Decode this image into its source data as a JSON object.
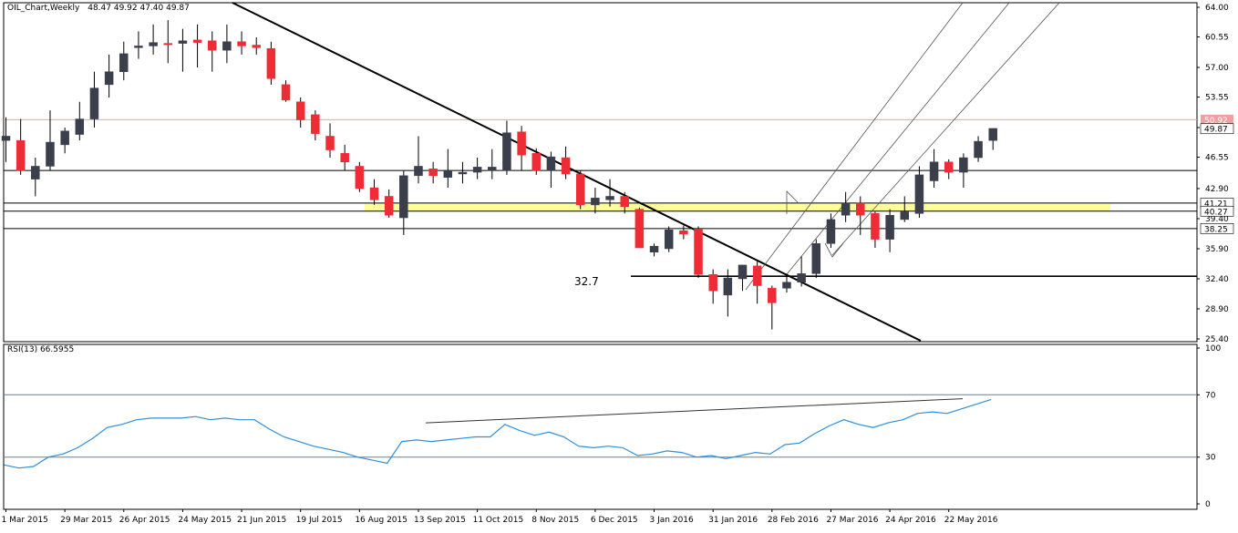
{
  "header": {
    "symbol": "OIL_Chart,Weekly",
    "ohlc": "48.47 49.92 47.40 49.87",
    "rsi_label": "RSI(13) 66.5955"
  },
  "colors": {
    "bull": "#3a3f4b",
    "bear": "#ee2c36",
    "background": "#ffffff",
    "resistance_line": "#f0a0a0",
    "support_zone": "#ffff99",
    "rsi_line": "#2f8fd8",
    "channel": "#555555"
  },
  "annotations": {
    "support_label": "32.7"
  },
  "chart_data": [
    {
      "type": "candlestick",
      "title": "OIL_Chart,Weekly",
      "ylim": [
        25.4,
        64.0
      ],
      "y_ticks": [
        "64.00",
        "60.55",
        "57.00",
        "53.55",
        "50.00",
        "46.55",
        "42.90",
        "39.40",
        "35.90",
        "32.40",
        "28.90",
        "25.40"
      ],
      "price_labels": [
        {
          "text": "50.92",
          "value": 50.92,
          "kind": "resistance"
        },
        {
          "text": "49.87",
          "value": 49.87,
          "kind": "last"
        },
        {
          "text": "41.21",
          "value": 41.21,
          "kind": "level"
        },
        {
          "text": "40.27",
          "value": 40.27,
          "kind": "level"
        },
        {
          "text": "38.25",
          "value": 38.25,
          "kind": "level"
        }
      ],
      "x_labels": [
        "1 Mar 2015",
        "29 Mar 2015",
        "26 Apr 2015",
        "24 May 2015",
        "21 Jun 2015",
        "19 Jul 2015",
        "16 Aug 2015",
        "13 Sep 2015",
        "11 Oct 2015",
        "8 Nov 2015",
        "6 Dec 2015",
        "3 Jan 2016",
        "31 Jan 2016",
        "28 Feb 2016",
        "27 Mar 2016",
        "24 Apr 2016",
        "22 May 2016"
      ],
      "horizontal_levels": [
        50.92,
        45.0,
        41.21,
        40.27,
        38.25,
        32.7
      ],
      "support_zone": [
        40.27,
        41.21
      ],
      "candles": [
        {
          "o": 48.5,
          "h": 51.2,
          "l": 46.0,
          "c": 49.0
        },
        {
          "o": 48.5,
          "h": 51.0,
          "l": 44.5,
          "c": 45.0
        },
        {
          "o": 44.0,
          "h": 46.5,
          "l": 42.0,
          "c": 45.5
        },
        {
          "o": 45.5,
          "h": 52.0,
          "l": 45.0,
          "c": 48.3
        },
        {
          "o": 48.0,
          "h": 50.0,
          "l": 47.0,
          "c": 49.6
        },
        {
          "o": 49.2,
          "h": 53.0,
          "l": 48.5,
          "c": 51.0
        },
        {
          "o": 51.0,
          "h": 56.5,
          "l": 50.0,
          "c": 54.6
        },
        {
          "o": 55.0,
          "h": 58.5,
          "l": 53.5,
          "c": 56.5
        },
        {
          "o": 56.5,
          "h": 60.0,
          "l": 55.5,
          "c": 58.6
        },
        {
          "o": 59.3,
          "h": 61.2,
          "l": 58.0,
          "c": 59.5
        },
        {
          "o": 59.5,
          "h": 62.0,
          "l": 58.5,
          "c": 59.9
        },
        {
          "o": 59.8,
          "h": 62.5,
          "l": 57.5,
          "c": 59.7
        },
        {
          "o": 59.8,
          "h": 61.5,
          "l": 56.5,
          "c": 60.1
        },
        {
          "o": 60.2,
          "h": 62.0,
          "l": 57.0,
          "c": 59.9
        },
        {
          "o": 60.1,
          "h": 61.2,
          "l": 56.5,
          "c": 59.0
        },
        {
          "o": 59.0,
          "h": 62.0,
          "l": 57.5,
          "c": 60.0
        },
        {
          "o": 60.0,
          "h": 61.2,
          "l": 58.5,
          "c": 59.5
        },
        {
          "o": 59.6,
          "h": 60.5,
          "l": 58.5,
          "c": 59.3
        },
        {
          "o": 59.2,
          "h": 60.0,
          "l": 55.0,
          "c": 55.7
        },
        {
          "o": 55.0,
          "h": 55.5,
          "l": 53.0,
          "c": 53.2
        },
        {
          "o": 53.0,
          "h": 53.5,
          "l": 50.0,
          "c": 50.9
        },
        {
          "o": 51.5,
          "h": 52.0,
          "l": 48.5,
          "c": 49.3
        },
        {
          "o": 49.0,
          "h": 50.5,
          "l": 46.5,
          "c": 47.4
        },
        {
          "o": 47.0,
          "h": 48.0,
          "l": 45.0,
          "c": 46.0
        },
        {
          "o": 45.5,
          "h": 46.0,
          "l": 42.5,
          "c": 42.9
        },
        {
          "o": 43.0,
          "h": 44.0,
          "l": 41.0,
          "c": 41.6
        },
        {
          "o": 42.0,
          "h": 42.8,
          "l": 39.5,
          "c": 39.8
        },
        {
          "o": 39.5,
          "h": 45.0,
          "l": 37.5,
          "c": 44.4
        },
        {
          "o": 44.4,
          "h": 49.0,
          "l": 43.5,
          "c": 45.5
        },
        {
          "o": 45.2,
          "h": 46.0,
          "l": 43.5,
          "c": 44.4
        },
        {
          "o": 44.2,
          "h": 47.5,
          "l": 43.0,
          "c": 45.0
        },
        {
          "o": 44.6,
          "h": 46.0,
          "l": 43.5,
          "c": 44.8
        },
        {
          "o": 44.8,
          "h": 46.5,
          "l": 44.0,
          "c": 45.4
        },
        {
          "o": 45.0,
          "h": 47.5,
          "l": 44.0,
          "c": 45.4
        },
        {
          "o": 45.0,
          "h": 50.8,
          "l": 44.5,
          "c": 49.4
        },
        {
          "o": 49.5,
          "h": 50.2,
          "l": 45.0,
          "c": 46.8
        },
        {
          "o": 47.0,
          "h": 47.6,
          "l": 44.5,
          "c": 45.0
        },
        {
          "o": 45.0,
          "h": 47.2,
          "l": 43.0,
          "c": 46.6
        },
        {
          "o": 46.5,
          "h": 47.8,
          "l": 44.0,
          "c": 44.6
        },
        {
          "o": 44.6,
          "h": 45.0,
          "l": 40.5,
          "c": 41.0
        },
        {
          "o": 41.0,
          "h": 43.0,
          "l": 40.0,
          "c": 41.8
        },
        {
          "o": 41.6,
          "h": 44.0,
          "l": 40.8,
          "c": 42.0
        },
        {
          "o": 42.0,
          "h": 42.5,
          "l": 40.0,
          "c": 40.8
        },
        {
          "o": 40.5,
          "h": 40.7,
          "l": 36.0,
          "c": 36.0
        },
        {
          "o": 35.5,
          "h": 36.5,
          "l": 35.0,
          "c": 36.2
        },
        {
          "o": 35.9,
          "h": 38.5,
          "l": 35.5,
          "c": 38.1
        },
        {
          "o": 38.0,
          "h": 38.6,
          "l": 37.0,
          "c": 37.6
        },
        {
          "o": 38.2,
          "h": 38.5,
          "l": 32.5,
          "c": 32.9
        },
        {
          "o": 32.9,
          "h": 33.5,
          "l": 29.5,
          "c": 31.0
        },
        {
          "o": 30.5,
          "h": 33.5,
          "l": 28.0,
          "c": 32.5
        },
        {
          "o": 32.4,
          "h": 34.0,
          "l": 31.0,
          "c": 34.0
        },
        {
          "o": 33.9,
          "h": 34.5,
          "l": 29.5,
          "c": 31.6
        },
        {
          "o": 31.3,
          "h": 31.6,
          "l": 26.5,
          "c": 29.6
        },
        {
          "o": 31.3,
          "h": 33.0,
          "l": 30.8,
          "c": 32.0
        },
        {
          "o": 32.0,
          "h": 35.0,
          "l": 31.5,
          "c": 33.0
        },
        {
          "o": 33.0,
          "h": 37.0,
          "l": 32.5,
          "c": 36.5
        },
        {
          "o": 36.5,
          "h": 40.0,
          "l": 36.0,
          "c": 39.3
        },
        {
          "o": 39.8,
          "h": 42.5,
          "l": 39.0,
          "c": 41.2
        },
        {
          "o": 41.2,
          "h": 42.0,
          "l": 37.5,
          "c": 39.8
        },
        {
          "o": 40.0,
          "h": 40.2,
          "l": 36.0,
          "c": 37.0
        },
        {
          "o": 37.0,
          "h": 40.5,
          "l": 35.5,
          "c": 39.8
        },
        {
          "o": 39.3,
          "h": 42.0,
          "l": 39.0,
          "c": 40.2
        },
        {
          "o": 40.0,
          "h": 45.5,
          "l": 39.5,
          "c": 44.5
        },
        {
          "o": 43.8,
          "h": 47.5,
          "l": 43.0,
          "c": 46.0
        },
        {
          "o": 46.0,
          "h": 46.3,
          "l": 44.0,
          "c": 44.8
        },
        {
          "o": 44.8,
          "h": 47.0,
          "l": 43.0,
          "c": 46.5
        },
        {
          "o": 46.5,
          "h": 49.0,
          "l": 46.0,
          "c": 48.4
        },
        {
          "o": 48.5,
          "h": 49.9,
          "l": 47.4,
          "c": 49.9
        }
      ]
    },
    {
      "type": "line",
      "title": "RSI(13) 66.5955",
      "ylim": [
        0,
        100
      ],
      "y_ticks": [
        "100",
        "70",
        "30",
        "0"
      ],
      "levels": [
        70,
        30
      ],
      "series": [
        {
          "name": "RSI(13)",
          "values": [
            25,
            23,
            24,
            30,
            32,
            36,
            42,
            49,
            51,
            54,
            55,
            55,
            55,
            56,
            54,
            55,
            54,
            54,
            48,
            43,
            40,
            37,
            35,
            33,
            30,
            28,
            26,
            40,
            41,
            40,
            41,
            42,
            43,
            43,
            51,
            47,
            44,
            46,
            43,
            37,
            36,
            37,
            36,
            31,
            32,
            34,
            33,
            30,
            31,
            29,
            31,
            33,
            32,
            38,
            39,
            45,
            50,
            54,
            51,
            49,
            52,
            54,
            58,
            59,
            58,
            61,
            64,
            67
          ]
        },
        {
          "name": "RSI trendline",
          "values": [
            52,
            67.5
          ]
        }
      ]
    }
  ]
}
